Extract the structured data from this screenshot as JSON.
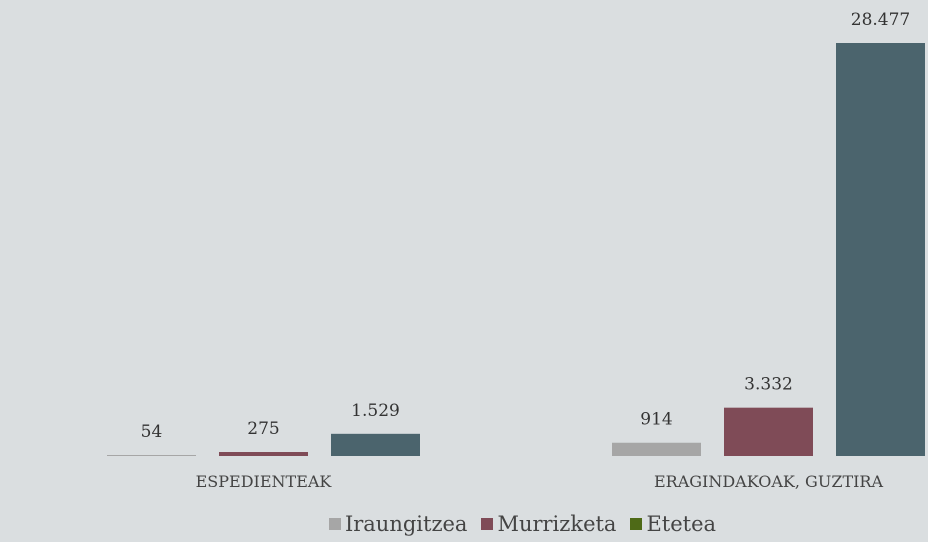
{
  "chart_data": {
    "type": "bar",
    "categories": [
      "ESPEDIENTEAK",
      "ERAGINDAKOAK, GUZTIRA"
    ],
    "series": [
      {
        "name": "Iraungitzea",
        "values": [
          54,
          914
        ],
        "labels": [
          "54",
          "914"
        ],
        "color": "#a6a6a6"
      },
      {
        "name": "Murrizketa",
        "values": [
          275,
          3332
        ],
        "labels": [
          "275",
          "3.332"
        ],
        "color": "#7f4b57"
      },
      {
        "name": "Etetea",
        "values": [
          1529,
          28477
        ],
        "labels": [
          "1.529",
          "28.477"
        ],
        "color": "#4b646d"
      }
    ],
    "legend_colors": [
      "#a6a6a6",
      "#7f4b57",
      "#4e6a17"
    ],
    "ylim": [
      0,
      28477
    ],
    "grid": false,
    "legend_position": "bottom"
  }
}
